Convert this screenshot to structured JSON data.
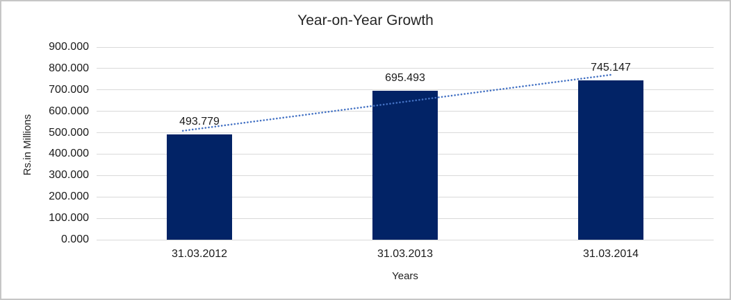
{
  "chart_data": {
    "type": "bar",
    "title": "Year-on-Year Growth",
    "xlabel": "Years",
    "ylabel": "Rs.in Millions",
    "categories": [
      "31.03.2012",
      "31.03.2013",
      "31.03.2014"
    ],
    "values": [
      493.779,
      695.493,
      745.147
    ],
    "data_labels": [
      "493.779",
      "695.493",
      "745.147"
    ],
    "ylim": [
      0,
      900
    ],
    "ytick_step": 100,
    "ytick_labels": [
      "900.000",
      "800.000",
      "700.000",
      "600.000",
      "500.000",
      "400.000",
      "300.000",
      "200.000",
      "100.000",
      "0.000"
    ],
    "grid": true,
    "legend": "none",
    "trendline": {
      "type": "linear",
      "style": "dotted",
      "start_value": 519.1,
      "end_value": 770.5
    },
    "colors": {
      "bar": "#022366",
      "trendline": "#4472c4",
      "gridline": "#d9d9d9",
      "text": "#1a1a1a",
      "border": "#c6c6c6"
    }
  }
}
